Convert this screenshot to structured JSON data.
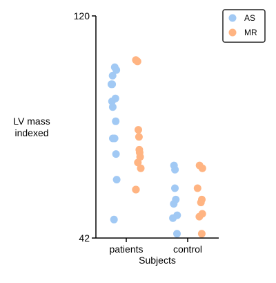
{
  "chart_data": {
    "type": "scatter",
    "style": "strip",
    "xlabel": "Subjects",
    "ylabel": [
      "LV mass",
      "indexed"
    ],
    "ylim": [
      42,
      120
    ],
    "yticks": [
      42,
      120
    ],
    "categories": [
      "patients",
      "control"
    ],
    "legend": {
      "placement": "top-right",
      "entries": [
        "AS",
        "MR"
      ]
    },
    "series": [
      {
        "name": "AS",
        "color": "#a1c9f4",
        "points": [
          {
            "category": "patients",
            "y": 102.0
          },
          {
            "category": "patients",
            "y": 101.0
          },
          {
            "category": "patients",
            "y": 99.0
          },
          {
            "category": "patients",
            "y": 96.0
          },
          {
            "category": "patients",
            "y": 96.0
          },
          {
            "category": "patients",
            "y": 91.0
          },
          {
            "category": "patients",
            "y": 90.0
          },
          {
            "category": "patients",
            "y": 88.0
          },
          {
            "category": "patients",
            "y": 83.0
          },
          {
            "category": "patients",
            "y": 77.0
          },
          {
            "category": "patients",
            "y": 77.0
          },
          {
            "category": "patients",
            "y": 71.5
          },
          {
            "category": "patients",
            "y": 62.5
          },
          {
            "category": "patients",
            "y": 48.5
          },
          {
            "category": "control",
            "y": 67.5
          },
          {
            "category": "control",
            "y": 66.0
          },
          {
            "category": "control",
            "y": 59.5
          },
          {
            "category": "control",
            "y": 55.5
          },
          {
            "category": "control",
            "y": 54.0
          },
          {
            "category": "control",
            "y": 50.0
          },
          {
            "category": "control",
            "y": 49.0
          },
          {
            "category": "control",
            "y": 43.5
          }
        ]
      },
      {
        "name": "MR",
        "color": "#ffb482",
        "points": [
          {
            "category": "patients",
            "y": 104.5
          },
          {
            "category": "patients",
            "y": 104.0
          },
          {
            "category": "patients",
            "y": 80.0
          },
          {
            "category": "patients",
            "y": 77.5
          },
          {
            "category": "patients",
            "y": 73.0
          },
          {
            "category": "patients",
            "y": 72.0
          },
          {
            "category": "patients",
            "y": 70.5
          },
          {
            "category": "patients",
            "y": 68.5
          },
          {
            "category": "patients",
            "y": 66.5
          },
          {
            "category": "patients",
            "y": 59.0
          },
          {
            "category": "patients",
            "y": 59.0
          },
          {
            "category": "control",
            "y": 67.5
          },
          {
            "category": "control",
            "y": 66.5
          },
          {
            "category": "control",
            "y": 59.5
          },
          {
            "category": "control",
            "y": 55.5
          },
          {
            "category": "control",
            "y": 54.5
          },
          {
            "category": "control",
            "y": 50.5
          },
          {
            "category": "control",
            "y": 49.5
          },
          {
            "category": "control",
            "y": 43.5
          }
        ]
      }
    ]
  }
}
